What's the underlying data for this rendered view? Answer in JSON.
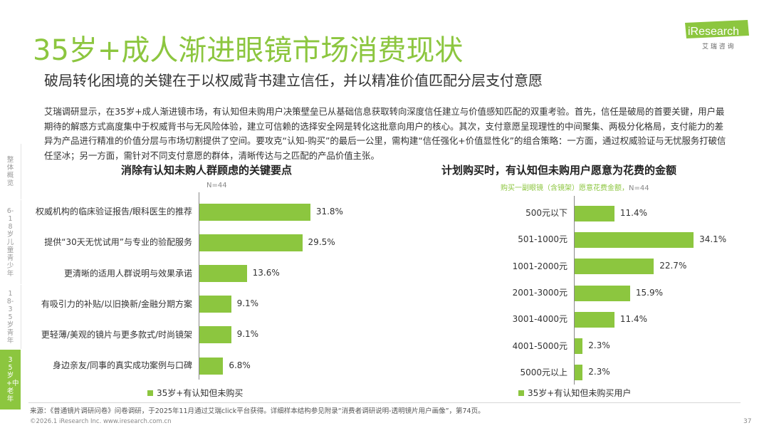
{
  "title": "35岁+成人渐进眼镜市场消费现状",
  "subtitle": "破局转化困境的关键在于以权威背书建立信任，并以精准价值匹配分层支付意愿",
  "body": "艾瑞调研显示，在35岁+成人渐进镜市场，有认知但未购用户决策壁垒已从基础信息获取转向深度信任建立与价值感知匹配的双重考验。首先，信任是破局的首要关键，用户最期待的解惑方式高度集中于权威背书与无风险体验，建立可信赖的选择安全网是转化这批意向用户的核心。其次，支付意愿呈现理性的中间聚集、两极分化格局，支付能力的差异为产品进行精准的价值分层与市场切割提供了空间。要攻克“认知-购买”的最后一公里，需构建“信任强化+价值显性化”的组合策略：一方面，通过权威验证与无忧服务打破信任坚冰；另一方面，需针对不同支付意愿的群体，清晰传达与之匹配的产品价值主张。",
  "logo": {
    "brand": "iResearch",
    "cn": "艾 瑞 咨 询",
    "color": "#8cc63f"
  },
  "sidebar": [
    {
      "label": "整体概览",
      "active": false
    },
    {
      "label": "6-18岁儿童青少年",
      "active": false
    },
    {
      "label": "18-35岁青年",
      "active": false
    },
    {
      "label": "35岁+中老年",
      "active": true
    }
  ],
  "colors": {
    "accent": "#8cc63f"
  },
  "chart_data": [
    {
      "type": "bar",
      "orientation": "horizontal",
      "title": "消除有认知未购人群顾虑的关键要点",
      "note": "N=44",
      "categories": [
        "权威机构的临床验证报告/眼科医生的推荐",
        "提供“30天无忧试用”与专业的验配服务",
        "更清晰的适用人群说明与效果承诺",
        "有吸引力的补贴/以旧换新/金融分期方案",
        "更轻薄/美观的镜片与更多款式/时尚镜架",
        "身边亲友/同事的真实成功案例与口碑"
      ],
      "value_labels": [
        "31.8%",
        "29.5%",
        "13.6%",
        "9.1%",
        "9.1%",
        "6.8%"
      ],
      "values": [
        31.8,
        29.5,
        13.6,
        9.1,
        9.1,
        6.8
      ],
      "series": [
        {
          "name": "35岁+有认知但未购买"
        }
      ]
    },
    {
      "type": "bar",
      "orientation": "horizontal",
      "title": "计划购买时，有认知但未购用户愿意为花费的金额",
      "note_prefix": "购买一副眼镜（含镜架）愿意花费金额，",
      "note": "N=44",
      "categories": [
        "500元以下",
        "501-1000元",
        "1001-2000元",
        "2001-3000元",
        "3001-4000元",
        "4001-5000元",
        "5000元以上"
      ],
      "value_labels": [
        "11.4%",
        "34.1%",
        "22.7%",
        "15.9%",
        "11.4%",
        "2.3%",
        "2.3%"
      ],
      "values": [
        11.4,
        34.1,
        22.7,
        15.9,
        11.4,
        2.3,
        2.3
      ],
      "series": [
        {
          "name": "35岁+有认知但未购买用户"
        }
      ]
    }
  ],
  "footer": {
    "source": "来源：《普通镜片调研问卷》问卷调研，于2025年11月通过艾瑞click平台获得。详细样本结构参见附录“消费者调研说明-透明镜片用户画像”，第74页。",
    "copyright": "©2026.1 iResearch Inc. www.iresearch.com.cn",
    "page": "37"
  }
}
